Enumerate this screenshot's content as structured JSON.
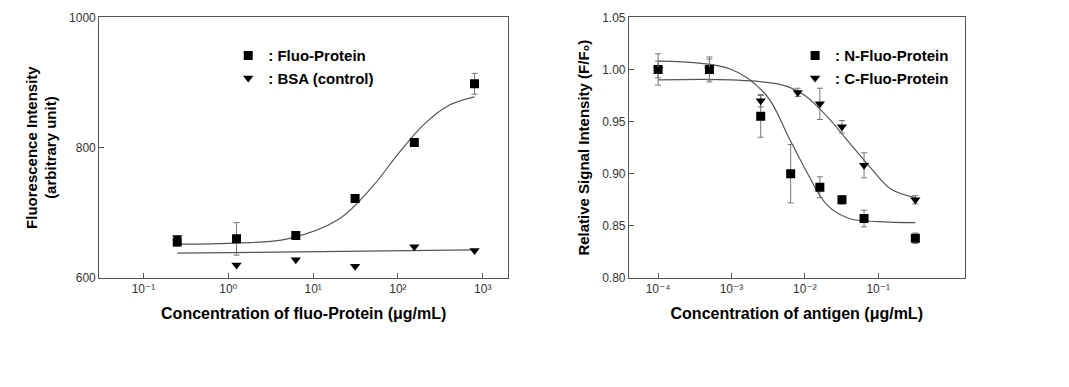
{
  "chart_data": [
    {
      "type": "scatter",
      "log": "x",
      "grid": false,
      "legend": "upper center",
      "x_label": "Concentration of fluo-Protein (μg/mL)",
      "y_label": "Fluorescence Intensity\n(arbitrary unit)",
      "xlim": [
        0.03,
        2000
      ],
      "xticks": [
        {
          "value": 0.1,
          "label": "10⁻¹"
        },
        {
          "value": 1,
          "label": "10⁰"
        },
        {
          "value": 10,
          "label": "10¹"
        },
        {
          "value": 100,
          "label": "10²"
        },
        {
          "value": 1000,
          "label": "10³"
        }
      ],
      "ylim": [
        600,
        1000
      ],
      "yticks": [
        600,
        800,
        1000
      ],
      "series": [
        {
          "name": ": Fluo-Protein",
          "color": "#000000",
          "marker": "square",
          "x": [
            0.25,
            1.25,
            6.25,
            31.25,
            156,
            800
          ],
          "values": [
            655,
            660,
            665,
            722,
            808,
            898
          ],
          "errors": [
            6,
            25,
            4,
            5,
            6,
            16
          ],
          "fit_x": [
            0.25,
            1,
            5,
            20,
            50,
            100,
            200,
            400,
            800
          ],
          "fit_values": [
            652,
            653,
            660,
            690,
            740,
            790,
            835,
            865,
            878
          ]
        },
        {
          "name": ": BSA (control)",
          "color": "#000000",
          "marker": "triangle-down",
          "x": [
            0.25,
            1.25,
            6.25,
            31.25,
            156,
            800
          ],
          "values": [
            662,
            620,
            628,
            618,
            648,
            642
          ],
          "fit_x": [
            0.25,
            800
          ],
          "fit_values": [
            638,
            643
          ]
        }
      ]
    },
    {
      "type": "scatter",
      "log": "x",
      "grid": false,
      "legend": "upper right",
      "x_label": "Concentration of antigen (μg/mL)",
      "y_label": "Relative Signal Intensity (F/F₀)",
      "xlim": [
        4e-05,
        1.5
      ],
      "xticks": [
        {
          "value": 0.0001,
          "label": "10⁻⁴"
        },
        {
          "value": 0.001,
          "label": "10⁻³"
        },
        {
          "value": 0.01,
          "label": "10⁻²"
        },
        {
          "value": 0.1,
          "label": "10⁻¹"
        }
      ],
      "ylim": [
        0.8,
        1.05
      ],
      "yticks": [
        {
          "value": 0.8,
          "label": "0.80"
        },
        {
          "value": 0.85,
          "label": "0.85"
        },
        {
          "value": 0.9,
          "label": "0.90"
        },
        {
          "value": 0.95,
          "label": "0.95"
        },
        {
          "value": 1.0,
          "label": "1.00"
        },
        {
          "value": 1.05,
          "label": "1.05"
        }
      ],
      "series": [
        {
          "name": ": N-Fluo-Protein",
          "color": "#000000",
          "marker": "square",
          "x": [
            0.0001,
            0.0005,
            0.0025,
            0.0064,
            0.016,
            0.032,
            0.064,
            0.32
          ],
          "values": [
            1.0,
            1.0,
            0.955,
            0.9,
            0.887,
            0.875,
            0.857,
            0.838
          ],
          "errors": [
            0.015,
            0.012,
            0.02,
            0.028,
            0.01,
            0.004,
            0.008,
            0.005
          ],
          "fit_x": [
            0.0001,
            0.001,
            0.003,
            0.006,
            0.01,
            0.02,
            0.04,
            0.1,
            0.32
          ],
          "fit_values": [
            1.008,
            1.0,
            0.975,
            0.935,
            0.905,
            0.87,
            0.857,
            0.854,
            0.853
          ]
        },
        {
          "name": ": C-Fluo-Protein",
          "color": "#000000",
          "marker": "triangle-down",
          "x": [
            0.0001,
            0.0005,
            0.0025,
            0.008,
            0.016,
            0.032,
            0.064,
            0.32
          ],
          "values": [
            1.0,
            1.0,
            0.97,
            0.978,
            0.967,
            0.945,
            0.908,
            0.875
          ],
          "errors": [
            0.008,
            0.01,
            0.006,
            0.004,
            0.015,
            0.006,
            0.012,
            0.004
          ],
          "fit_x": [
            0.0001,
            0.001,
            0.005,
            0.01,
            0.02,
            0.04,
            0.08,
            0.15,
            0.32
          ],
          "fit_values": [
            0.99,
            0.99,
            0.985,
            0.975,
            0.955,
            0.93,
            0.905,
            0.885,
            0.877
          ]
        }
      ]
    }
  ]
}
